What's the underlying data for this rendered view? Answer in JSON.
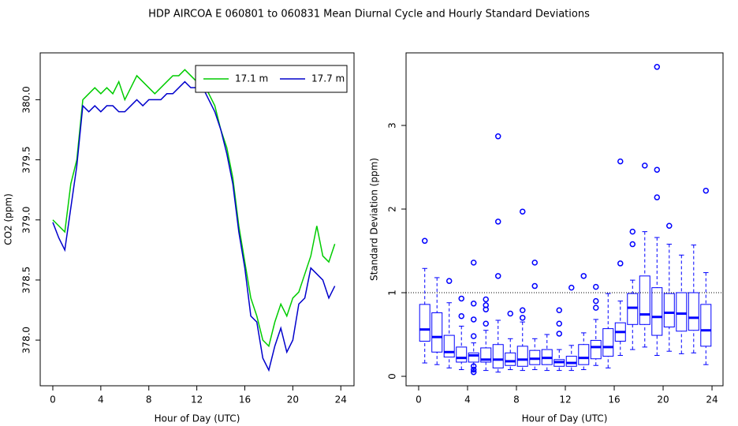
{
  "title": "HDP   AIRCOA E   060801 to 060831   Mean Diurnal Cycle and Hourly Standard Deviations",
  "chart_data": [
    {
      "type": "line",
      "x_label": "Hour of Day (UTC)",
      "y_label": "CO2 (ppm)",
      "x": [
        0,
        0.5,
        1,
        1.5,
        2,
        2.5,
        3,
        3.5,
        4,
        4.5,
        5,
        5.5,
        6,
        6.5,
        7,
        7.5,
        8,
        8.5,
        9,
        9.5,
        10,
        10.5,
        11,
        11.5,
        12,
        12.5,
        13,
        13.5,
        14,
        14.5,
        15,
        15.5,
        16,
        16.5,
        17,
        17.5,
        18,
        18.5,
        19,
        19.5,
        20,
        20.5,
        21,
        21.5,
        22,
        22.5,
        23,
        23.5
      ],
      "series": [
        {
          "name": "17.1 m",
          "color": "#00cc00",
          "values": [
            379.0,
            378.95,
            378.9,
            379.3,
            379.5,
            380.0,
            380.05,
            380.1,
            380.05,
            380.1,
            380.05,
            380.15,
            380.0,
            380.1,
            380.2,
            380.15,
            380.1,
            380.05,
            380.1,
            380.15,
            380.2,
            380.2,
            380.25,
            380.2,
            380.15,
            380.15,
            380.05,
            379.95,
            379.75,
            379.6,
            379.35,
            378.95,
            378.65,
            378.35,
            378.2,
            378.0,
            377.95,
            378.15,
            378.3,
            378.2,
            378.35,
            378.4,
            378.55,
            378.7,
            378.95,
            378.7,
            378.65,
            378.8
          ]
        },
        {
          "name": "17.7 m",
          "color": "#0000cc",
          "values": [
            378.98,
            378.85,
            378.75,
            379.1,
            379.45,
            379.95,
            379.9,
            379.95,
            379.9,
            379.95,
            379.95,
            379.9,
            379.9,
            379.95,
            380.0,
            379.95,
            380.0,
            380.0,
            380.0,
            380.05,
            380.05,
            380.1,
            380.15,
            380.1,
            380.1,
            380.1,
            380.0,
            379.9,
            379.75,
            379.55,
            379.3,
            378.9,
            378.6,
            378.2,
            378.15,
            377.85,
            377.75,
            377.95,
            378.1,
            377.9,
            378.0,
            378.3,
            378.35,
            378.6,
            378.55,
            378.5,
            378.35,
            378.45
          ]
        }
      ],
      "xlim": [
        -1.05,
        25.1
      ],
      "ylim": [
        377.62,
        380.39
      ],
      "xticks": [
        0,
        4,
        8,
        12,
        16,
        20,
        24
      ],
      "yticks": [
        {
          "value": 378,
          "label": "378.0"
        },
        378.5,
        {
          "value": 379,
          "label": "379.0"
        },
        379.5,
        {
          "value": 380,
          "label": "380.0"
        }
      ],
      "legend": "topright"
    },
    {
      "type": "box",
      "x_label": "Hour of Day (UTC)",
      "y_label": "Standard Deviation (ppm)",
      "color": "#0000ff",
      "x": [
        0.5,
        1.5,
        2.5,
        3.5,
        4.5,
        5.5,
        6.5,
        7.5,
        8.5,
        9.5,
        10.5,
        11.5,
        12.5,
        13.5,
        14.5,
        15.5,
        16.5,
        17.5,
        18.5,
        19.5,
        20.5,
        21.5,
        22.5,
        23.5
      ],
      "boxes": [
        {
          "low": 0.16,
          "q1": 0.42,
          "median": 0.56,
          "q3": 0.86,
          "high": 1.29,
          "outliers": [
            1.62
          ]
        },
        {
          "low": 0.14,
          "q1": 0.29,
          "median": 0.47,
          "q3": 0.76,
          "high": 1.18,
          "outliers": []
        },
        {
          "low": 0.1,
          "q1": 0.23,
          "median": 0.29,
          "q3": 0.49,
          "high": 0.88,
          "outliers": [
            1.14
          ]
        },
        {
          "low": 0.08,
          "q1": 0.17,
          "median": 0.22,
          "q3": 0.35,
          "high": 0.6,
          "outliers": [
            0.93,
            0.72
          ]
        },
        {
          "low": 0.06,
          "q1": 0.17,
          "median": 0.25,
          "q3": 0.28,
          "high": 0.4,
          "outliers": [
            1.36,
            0.87,
            0.68,
            0.48,
            0.12,
            0.08,
            0.05
          ]
        },
        {
          "low": 0.07,
          "q1": 0.17,
          "median": 0.2,
          "q3": 0.34,
          "high": 0.55,
          "outliers": [
            0.92,
            0.85,
            0.8,
            0.63
          ]
        },
        {
          "low": 0.05,
          "q1": 0.1,
          "median": 0.2,
          "q3": 0.38,
          "high": 0.67,
          "outliers": [
            2.87,
            1.85,
            1.2
          ]
        },
        {
          "low": 0.08,
          "q1": 0.13,
          "median": 0.18,
          "q3": 0.28,
          "high": 0.45,
          "outliers": [
            0.75
          ]
        },
        {
          "low": 0.07,
          "q1": 0.12,
          "median": 0.2,
          "q3": 0.36,
          "high": 0.65,
          "outliers": [
            1.97,
            0.79,
            0.7
          ]
        },
        {
          "low": 0.08,
          "q1": 0.14,
          "median": 0.21,
          "q3": 0.31,
          "high": 0.45,
          "outliers": [
            1.36,
            1.08
          ]
        },
        {
          "low": 0.07,
          "q1": 0.14,
          "median": 0.22,
          "q3": 0.32,
          "high": 0.5,
          "outliers": []
        },
        {
          "low": 0.07,
          "q1": 0.12,
          "median": 0.17,
          "q3": 0.2,
          "high": 0.32,
          "outliers": [
            0.79,
            0.63,
            0.51
          ]
        },
        {
          "low": 0.07,
          "q1": 0.12,
          "median": 0.16,
          "q3": 0.24,
          "high": 0.37,
          "outliers": [
            1.06
          ]
        },
        {
          "low": 0.08,
          "q1": 0.14,
          "median": 0.22,
          "q3": 0.38,
          "high": 0.52,
          "outliers": [
            1.2
          ]
        },
        {
          "low": 0.13,
          "q1": 0.21,
          "median": 0.35,
          "q3": 0.43,
          "high": 0.68,
          "outliers": [
            1.07,
            0.9,
            0.82
          ]
        },
        {
          "low": 0.1,
          "q1": 0.24,
          "median": 0.35,
          "q3": 0.57,
          "high": 0.99,
          "outliers": []
        },
        {
          "low": 0.25,
          "q1": 0.42,
          "median": 0.53,
          "q3": 0.64,
          "high": 0.9,
          "outliers": [
            2.57,
            1.35
          ]
        },
        {
          "low": 0.32,
          "q1": 0.62,
          "median": 0.82,
          "q3": 0.99,
          "high": 1.15,
          "outliers": [
            1.73,
            1.58
          ]
        },
        {
          "low": 0.35,
          "q1": 0.62,
          "median": 0.74,
          "q3": 1.2,
          "high": 1.73,
          "outliers": [
            2.52
          ]
        },
        {
          "low": 0.25,
          "q1": 0.49,
          "median": 0.71,
          "q3": 1.06,
          "high": 1.66,
          "outliers": [
            3.7,
            2.47,
            2.14
          ]
        },
        {
          "low": 0.3,
          "q1": 0.59,
          "median": 0.76,
          "q3": 0.99,
          "high": 1.58,
          "outliers": [
            1.8
          ]
        },
        {
          "low": 0.27,
          "q1": 0.54,
          "median": 0.75,
          "q3": 1.0,
          "high": 1.45,
          "outliers": []
        },
        {
          "low": 0.28,
          "q1": 0.55,
          "median": 0.7,
          "q3": 1.0,
          "high": 1.57,
          "outliers": []
        },
        {
          "low": 0.14,
          "q1": 0.36,
          "median": 0.55,
          "q3": 0.86,
          "high": 1.24,
          "outliers": [
            2.22
          ]
        }
      ],
      "reference_line": 1,
      "xlim": [
        -1.03,
        24.9
      ],
      "ylim": [
        -0.113,
        3.868
      ],
      "xticks": [
        0,
        4,
        8,
        12,
        16,
        20,
        24
      ],
      "yticks": [
        0,
        1,
        2,
        3
      ]
    }
  ]
}
